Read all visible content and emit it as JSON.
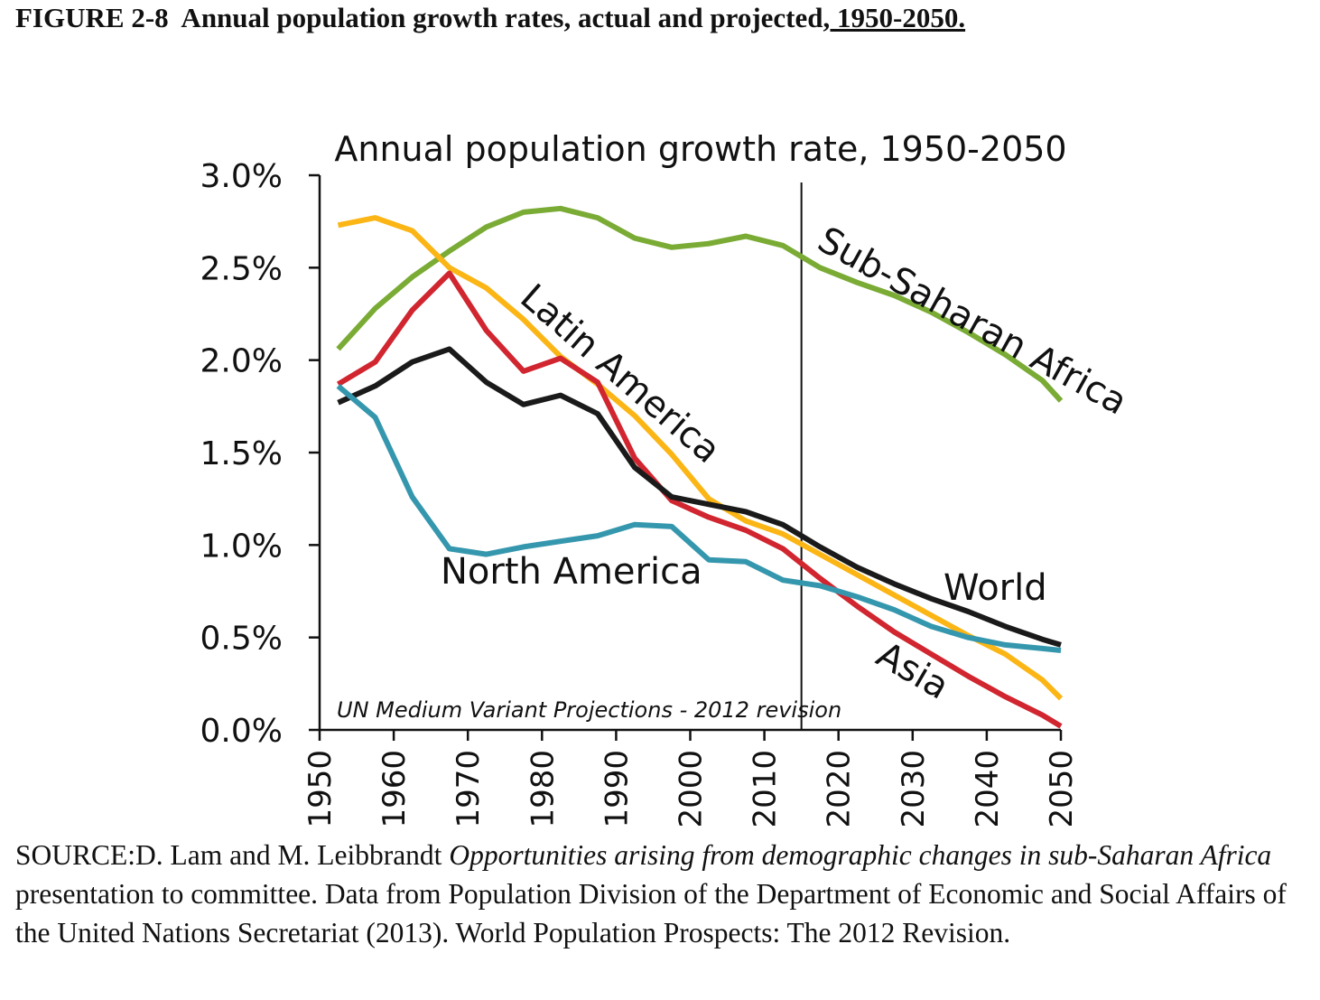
{
  "figure_caption": {
    "label": "FIGURE 2-8  Annual population growth rates, actual and projected",
    "underlined": ", 1950-2050."
  },
  "source": {
    "prefix": "SOURCE:D. Lam and M. Leibbrandt ",
    "italic_title": "Opportunities arising from demographic changes in sub-Saharan Africa",
    "rest": " presentation to committee. Data from Population Division of the Department of Economic and Social Affairs of the United Nations Secretariat (2013). World Population Prospects: The 2012 Revision."
  },
  "chart_data": {
    "type": "line",
    "title": "Annual population growth rate, 1950-2050",
    "xlabel": "",
    "ylabel": "",
    "xlim": [
      1950,
      2050
    ],
    "ylim": [
      0,
      3.0
    ],
    "x_ticks": [
      "1950",
      "1960",
      "1970",
      "1980",
      "1990",
      "2000",
      "2010",
      "2020",
      "2030",
      "2040",
      "2050"
    ],
    "y_ticks": [
      "0.0%",
      "0.5%",
      "1.0%",
      "1.5%",
      "2.0%",
      "2.5%",
      "3.0%"
    ],
    "grid": false,
    "legend": "none (inline labels)",
    "projection_start_marker": 2015,
    "annotation": "UN Medium Variant Projections - 2012 revision",
    "x": [
      1952.5,
      1957.5,
      1962.5,
      1967.5,
      1972.5,
      1977.5,
      1982.5,
      1987.5,
      1992.5,
      1997.5,
      2002.5,
      2007.5,
      2012.5,
      2017.5,
      2022.5,
      2027.5,
      2032.5,
      2037.5,
      2042.5,
      2047.5,
      2050
    ],
    "series": [
      {
        "name": "Sub-Saharan Africa",
        "color": "#7aab35",
        "values": [
          2.06,
          2.28,
          2.45,
          2.59,
          2.72,
          2.8,
          2.82,
          2.77,
          2.66,
          2.61,
          2.63,
          2.67,
          2.62,
          2.5,
          2.42,
          2.35,
          2.26,
          2.15,
          2.03,
          1.89,
          1.78
        ]
      },
      {
        "name": "Latin America",
        "color": "#fbb515",
        "values": [
          2.73,
          2.77,
          2.7,
          2.5,
          2.39,
          2.22,
          2.02,
          1.87,
          1.7,
          1.49,
          1.25,
          1.13,
          1.06,
          0.95,
          0.84,
          0.73,
          0.62,
          0.51,
          0.41,
          0.27,
          0.17
        ]
      },
      {
        "name": "Asia",
        "color": "#d1252f",
        "values": [
          1.87,
          1.99,
          2.27,
          2.47,
          2.16,
          1.94,
          2.01,
          1.88,
          1.47,
          1.24,
          1.15,
          1.08,
          0.98,
          0.82,
          0.67,
          0.53,
          0.41,
          0.29,
          0.18,
          0.08,
          0.02
        ]
      },
      {
        "name": "World",
        "color": "#1a1a1a",
        "values": [
          1.77,
          1.86,
          1.99,
          2.06,
          1.88,
          1.76,
          1.81,
          1.71,
          1.42,
          1.26,
          1.22,
          1.18,
          1.11,
          0.99,
          0.88,
          0.79,
          0.71,
          0.64,
          0.56,
          0.49,
          0.46
        ]
      },
      {
        "name": "North America",
        "color": "#3597ad",
        "values": [
          1.86,
          1.69,
          1.26,
          0.98,
          0.95,
          0.99,
          1.02,
          1.05,
          1.11,
          1.1,
          0.92,
          0.91,
          0.81,
          0.78,
          0.72,
          0.65,
          0.56,
          0.5,
          0.46,
          0.44,
          0.43
        ]
      }
    ]
  }
}
